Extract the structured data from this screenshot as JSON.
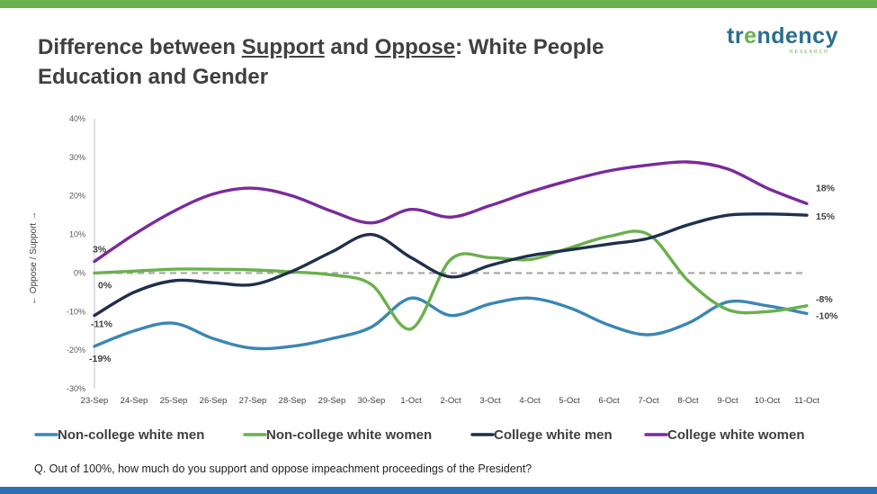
{
  "header": {
    "title_prefix": "Difference between ",
    "title_support": "Support",
    "title_and": " and ",
    "title_oppose": "Oppose",
    "title_suffix": ": White People",
    "title_line2": "Education and Gender",
    "logo_part1": "tr",
    "logo_part2": "e",
    "logo_part3": "ndency",
    "logo_sub": "RESEARCH"
  },
  "footnote": "Q. Out of 100%, how much do you support and oppose impeachment proceedings of the President?",
  "colors": {
    "top_bar": "#6ab04c",
    "bottom_bar": "#2e6fb3"
  },
  "chart_data": {
    "type": "line",
    "ylabel": "← Oppose / Support →",
    "ylim": [
      -30,
      40
    ],
    "ytick_labels": [
      "40%",
      "30%",
      "20%",
      "10%",
      "0%",
      "-10%",
      "-20%",
      "-30%"
    ],
    "yticks": [
      40,
      30,
      20,
      10,
      0,
      -10,
      -20,
      -30
    ],
    "categories": [
      "23-Sep",
      "24-Sep",
      "25-Sep",
      "26-Sep",
      "27-Sep",
      "28-Sep",
      "29-Sep",
      "30-Sep",
      "1-Oct",
      "2-Oct",
      "3-Oct",
      "4-Oct",
      "5-Oct",
      "6-Oct",
      "7-Oct",
      "8-Oct",
      "9-Oct",
      "10-Oct",
      "11-Oct"
    ],
    "grid": false,
    "legend_position": "bottom",
    "zero_line": "dashed",
    "series": [
      {
        "name": "Non-college white men",
        "color": "#3a86b4",
        "values": [
          -19,
          -15,
          -13,
          -17,
          -19.5,
          -19,
          -17,
          -14,
          -6.5,
          -11,
          -8,
          -6.5,
          -9,
          -13.5,
          -16,
          -13,
          -7.5,
          -8.5,
          -10.5
        ],
        "start_label": "-19%",
        "end_label": "-10%"
      },
      {
        "name": "Non-college white women",
        "color": "#6ab04c",
        "values": [
          0,
          0.5,
          1,
          1,
          0.8,
          0.3,
          -0.5,
          -3,
          -14.5,
          3.5,
          4,
          3.5,
          6.5,
          9.5,
          10,
          -2,
          -9.5,
          -10,
          -8.5
        ],
        "start_label": "0%",
        "end_label": "-8%"
      },
      {
        "name": "College white men",
        "color": "#1f2f4f",
        "values": [
          -11,
          -5,
          -2,
          -2.5,
          -3,
          0.5,
          5.5,
          10,
          4,
          -1,
          2,
          4.5,
          6,
          7.5,
          9,
          12.5,
          15,
          15.3,
          15
        ],
        "start_label": "-11%",
        "end_label": "15%"
      },
      {
        "name": "College white women",
        "color": "#7a2a9c",
        "values": [
          3,
          10,
          16,
          20.5,
          22,
          20,
          16,
          13,
          16.5,
          14.5,
          17.5,
          21,
          24,
          26.5,
          28,
          28.8,
          27,
          22,
          18
        ],
        "start_label": "3%",
        "end_label": "18%"
      }
    ]
  }
}
